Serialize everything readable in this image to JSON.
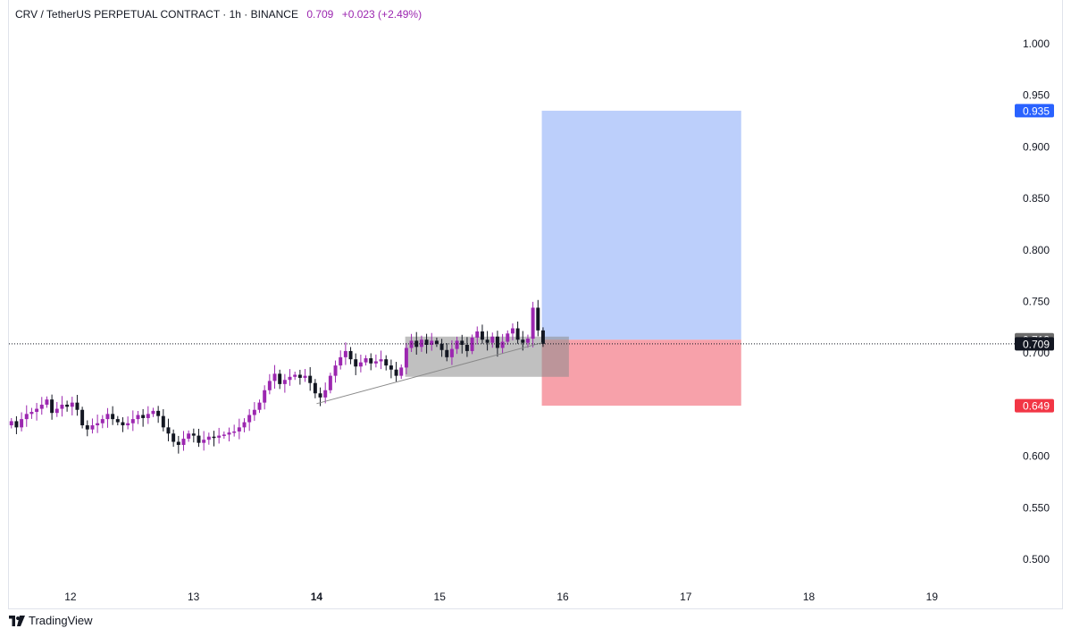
{
  "header": {
    "symbol": "CRV / TetherUS PERPETUAL CONTRACT · 1h · BINANCE",
    "price": "0.709",
    "change": "+0.023 (+2.49%)"
  },
  "footer": {
    "brand": "TradingView"
  },
  "colors": {
    "bull": "#9c27b0",
    "bear": "#131722",
    "target_zone": "#bccffb",
    "stop_zone": "#f7a1aa",
    "target_tag": "#2962ff",
    "stop_tag": "#f23645",
    "entry_box": "#8c8c8c",
    "current_price_tag": "#131722",
    "entry_tag": "#6b6b6b"
  },
  "chart_data": {
    "type": "candlestick",
    "title": "",
    "xlabel": "",
    "ylabel": "",
    "ylim": [
      0.475,
      1.025
    ],
    "x_range": [
      11.5,
      19.6
    ],
    "grid": false,
    "y_ticks": [
      "1.000",
      "0.950",
      "0.900",
      "0.850",
      "0.800",
      "0.750",
      "0.700",
      "0.650",
      "0.600",
      "0.550",
      "0.500"
    ],
    "x_ticks": [
      {
        "value": 12,
        "label": "12",
        "bold": false
      },
      {
        "value": 13,
        "label": "13",
        "bold": false
      },
      {
        "value": 14,
        "label": "14",
        "bold": true
      },
      {
        "value": 15,
        "label": "15",
        "bold": false
      },
      {
        "value": 16,
        "label": "16",
        "bold": false
      },
      {
        "value": 17,
        "label": "17",
        "bold": false
      },
      {
        "value": 18,
        "label": "18",
        "bold": false
      },
      {
        "value": 19,
        "label": "19",
        "bold": false
      }
    ],
    "closes": [
      0.634,
      0.628,
      0.636,
      0.641,
      0.643,
      0.646,
      0.65,
      0.655,
      0.642,
      0.646,
      0.65,
      0.648,
      0.652,
      0.645,
      0.63,
      0.626,
      0.63,
      0.632,
      0.636,
      0.641,
      0.636,
      0.633,
      0.63,
      0.632,
      0.636,
      0.64,
      0.637,
      0.641,
      0.644,
      0.639,
      0.628,
      0.622,
      0.614,
      0.611,
      0.617,
      0.622,
      0.62,
      0.613,
      0.616,
      0.619,
      0.618,
      0.62,
      0.621,
      0.623,
      0.624,
      0.628,
      0.633,
      0.64,
      0.645,
      0.652,
      0.664,
      0.673,
      0.68,
      0.67,
      0.674,
      0.677,
      0.679,
      0.676,
      0.678,
      0.671,
      0.661,
      0.657,
      0.664,
      0.678,
      0.688,
      0.696,
      0.702,
      0.694,
      0.687,
      0.691,
      0.695,
      0.69,
      0.692,
      0.694,
      0.688,
      0.684,
      0.678,
      0.686,
      0.705,
      0.712,
      0.706,
      0.713,
      0.708,
      0.712,
      0.709,
      0.703,
      0.696,
      0.704,
      0.712,
      0.708,
      0.702,
      0.715,
      0.721,
      0.713,
      0.71,
      0.716,
      0.705,
      0.711,
      0.719,
      0.724,
      0.713,
      0.71,
      0.714,
      0.744,
      0.722,
      0.709
    ],
    "last_price": 0.709,
    "entry_price": 0.713,
    "target_price": 0.935,
    "stop_price": 0.649,
    "position": {
      "x_start": 15.83,
      "x_end": 17.45,
      "entry": 0.713,
      "target": 0.935,
      "stop": 0.649
    },
    "entry_box": {
      "x_start": 14.72,
      "x_end": 16.05,
      "top": 0.716,
      "bottom": 0.677
    },
    "trendline": [
      {
        "x": 14.0,
        "y": 0.651
      },
      {
        "x": 15.83,
        "y": 0.71
      }
    ],
    "price_tags": [
      {
        "label": "0.935",
        "value": 0.935,
        "color": "#2962ff"
      },
      {
        "label": "0.713",
        "value": 0.713,
        "color": "#6b6b6b"
      },
      {
        "label": "0.709",
        "value": 0.709,
        "color": "#131722"
      },
      {
        "label": "0.649",
        "value": 0.649,
        "color": "#f23645"
      }
    ]
  }
}
